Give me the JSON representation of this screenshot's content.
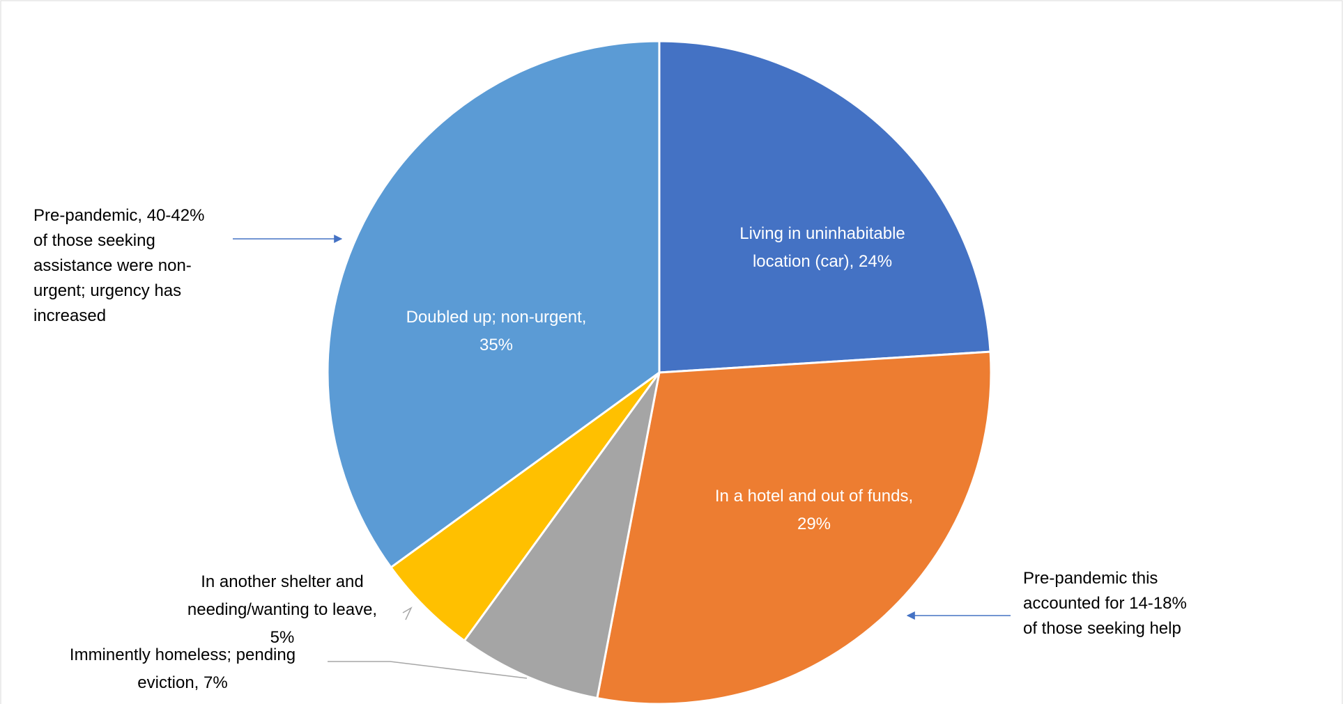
{
  "chart_data": {
    "type": "pie",
    "title": "",
    "slices": [
      {
        "label": "Living in uninhabitable location (car)",
        "value": 24,
        "color": "#4472C4",
        "label_lines": [
          "Living in uninhabitable",
          "location (car), 24%"
        ],
        "label_position": "inside"
      },
      {
        "label": "In a hotel and out of funds",
        "value": 29,
        "color": "#ED7D31",
        "label_lines": [
          "In a hotel and out of funds,",
          "29%"
        ],
        "label_position": "inside"
      },
      {
        "label": "Imminently homeless; pending eviction",
        "value": 7,
        "color": "#A5A5A5",
        "label_lines": [
          "Imminently homeless; pending",
          "eviction, 7%"
        ],
        "label_position": "outside"
      },
      {
        "label": "In another shelter and needing/wanting to leave",
        "value": 5,
        "color": "#FFC000",
        "label_lines": [
          "In another shelter and",
          "needing/wanting to leave,",
          "5%"
        ],
        "label_position": "outside"
      },
      {
        "label": "Doubled up; non-urgent",
        "value": 35,
        "color": "#5B9BD5",
        "label_lines": [
          "Doubled up; non-urgent,",
          "35%"
        ],
        "label_position": "inside"
      }
    ],
    "legend": "none",
    "annotations": [
      {
        "text_lines": [
          "Pre-pandemic, 40-42%",
          "of those seeking",
          "assistance were non-",
          "urgent; urgency has",
          "increased"
        ],
        "points_to": "Doubled up; non-urgent"
      },
      {
        "text_lines": [
          "Pre-pandemic this",
          "accounted for 14-18%",
          "of those seeking help"
        ],
        "points_to": "In a hotel and out of funds"
      }
    ]
  }
}
